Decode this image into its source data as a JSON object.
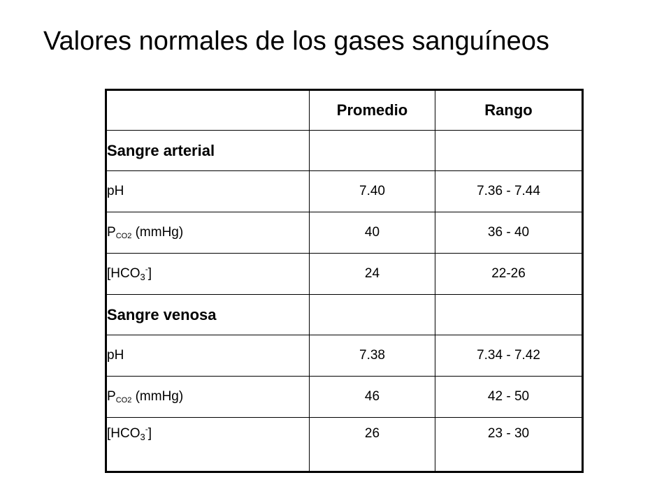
{
  "title": "Valores normales de los gases sanguíneos",
  "table": {
    "headers": [
      "",
      "Promedio",
      "Rango"
    ],
    "sections": [
      {
        "label": "Sangre arterial",
        "rows": [
          {
            "param_main": "pH",
            "param_sub": "",
            "param_tail": "",
            "promedio": "7.40",
            "rango": "7.36 - 7.44"
          },
          {
            "param_main": "P",
            "param_sub": "CO2",
            "param_tail": " (mmHg)",
            "promedio": "40",
            "rango": "36 - 40"
          },
          {
            "param_main": "[HCO",
            "param_sub": "3",
            "param_sup": "-",
            "param_tail": "]",
            "promedio": "24",
            "rango": "22-26"
          }
        ]
      },
      {
        "label": "Sangre venosa",
        "rows": [
          {
            "param_main": "pH",
            "param_sub": "",
            "param_tail": "",
            "promedio": "7.38",
            "rango": "7.34 - 7.42"
          },
          {
            "param_main": "P",
            "param_sub": "CO2",
            "param_tail": " (mmHg)",
            "promedio": "46",
            "rango": "42 - 50"
          },
          {
            "param_main": "[HCO",
            "param_sub": "3",
            "param_sup": "-",
            "param_tail": "]",
            "promedio": "26",
            "rango": "23 - 30"
          }
        ]
      }
    ]
  }
}
